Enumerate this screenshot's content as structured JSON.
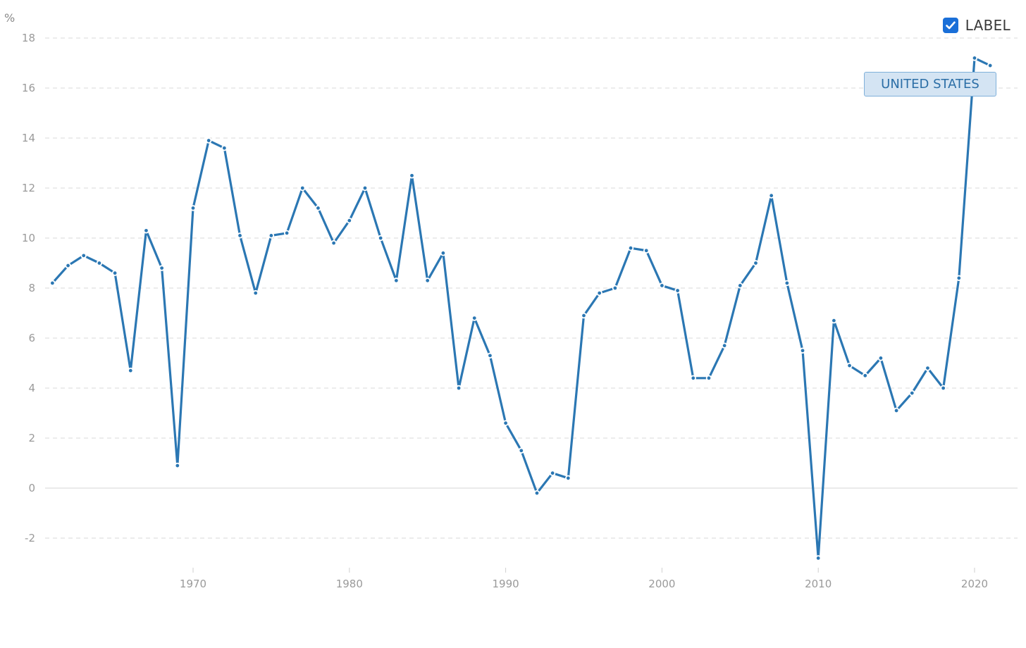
{
  "chart_data": {
    "type": "line",
    "ylabel": "%",
    "ylim": [
      -3,
      18
    ],
    "y_ticks": [
      18,
      16,
      14,
      12,
      10,
      8,
      6,
      4,
      2,
      0,
      -2
    ],
    "y_tick_labels": [
      "18",
      "16",
      "14",
      "12",
      "10",
      "8",
      "6",
      "4",
      "2",
      "0",
      "-2"
    ],
    "xlim": [
      1960.5,
      2023.5
    ],
    "x_ticks": [
      1970,
      1980,
      1990,
      2000,
      2010,
      2020
    ],
    "x_tick_labels": [
      "1970",
      "1980",
      "1990",
      "2000",
      "2010",
      "2020"
    ],
    "grid": true,
    "legend_position": "top-right",
    "colors": {
      "line": "#2b77b3",
      "grid": "#d9d9d9",
      "checkbox": "#1a6fd8"
    },
    "series": [
      {
        "name": "UNITED STATES",
        "x": [
          1961,
          1962,
          1963,
          1964,
          1965,
          1966,
          1967,
          1968,
          1969,
          1970,
          1971,
          1972,
          1973,
          1974,
          1975,
          1976,
          1977,
          1978,
          1979,
          1980,
          1981,
          1982,
          1983,
          1984,
          1985,
          1986,
          1987,
          1988,
          1989,
          1990,
          1991,
          1992,
          1993,
          1994,
          1995,
          1996,
          1997,
          1998,
          1999,
          2000,
          2001,
          2002,
          2003,
          2004,
          2005,
          2006,
          2007,
          2008,
          2009,
          2010,
          2011,
          2012,
          2013,
          2014,
          2015,
          2016,
          2017,
          2018,
          2019,
          2020,
          2021
        ],
        "values": [
          8.2,
          8.9,
          9.3,
          9.0,
          8.6,
          4.7,
          10.3,
          8.8,
          0.9,
          11.2,
          13.9,
          13.6,
          10.1,
          7.8,
          10.1,
          10.2,
          12.0,
          11.2,
          9.8,
          10.7,
          12.0,
          10.0,
          8.3,
          12.5,
          8.3,
          9.4,
          4.0,
          6.8,
          5.3,
          2.6,
          1.5,
          -0.2,
          0.6,
          0.4,
          6.9,
          7.8,
          8.0,
          9.6,
          9.5,
          8.1,
          7.9,
          4.4,
          4.4,
          5.7,
          8.1,
          9.0,
          11.7,
          8.2,
          5.5,
          -2.8,
          6.7,
          4.9,
          4.5,
          5.2,
          3.1,
          3.8,
          4.8,
          4.0,
          8.4,
          17.2,
          16.9
        ]
      }
    ]
  },
  "legend": {
    "label": "LABEL",
    "checked": true
  },
  "series_tag": {
    "label": "UNITED STATES"
  }
}
